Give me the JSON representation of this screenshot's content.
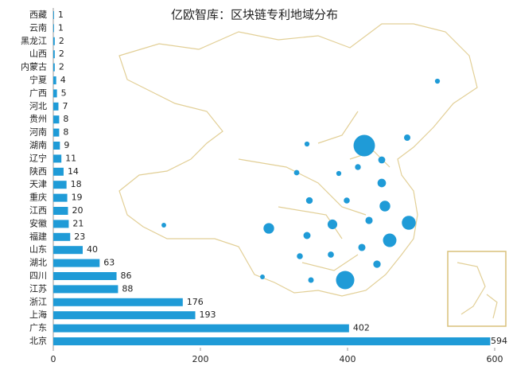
{
  "chart_data": {
    "type": "bar",
    "orientation": "horizontal",
    "title": "亿欧智库：区块链专利地域分布",
    "categories": [
      "西藏",
      "云南",
      "黑龙江",
      "山西",
      "内蒙古",
      "宁夏",
      "广西",
      "河北",
      "贵州",
      "河南",
      "湖南",
      "辽宁",
      "陕西",
      "天津",
      "重庆",
      "江西",
      "安徽",
      "福建",
      "山东",
      "湖北",
      "四川",
      "江苏",
      "浙江",
      "上海",
      "广东",
      "北京"
    ],
    "values": [
      1,
      1,
      2,
      2,
      2,
      4,
      5,
      7,
      8,
      8,
      9,
      11,
      14,
      18,
      19,
      20,
      21,
      23,
      40,
      63,
      86,
      88,
      176,
      193,
      402,
      594
    ],
    "color": "#1f9bd7",
    "xlim": [
      0,
      600
    ],
    "xticks": [
      0,
      200,
      400,
      600
    ]
  }
}
